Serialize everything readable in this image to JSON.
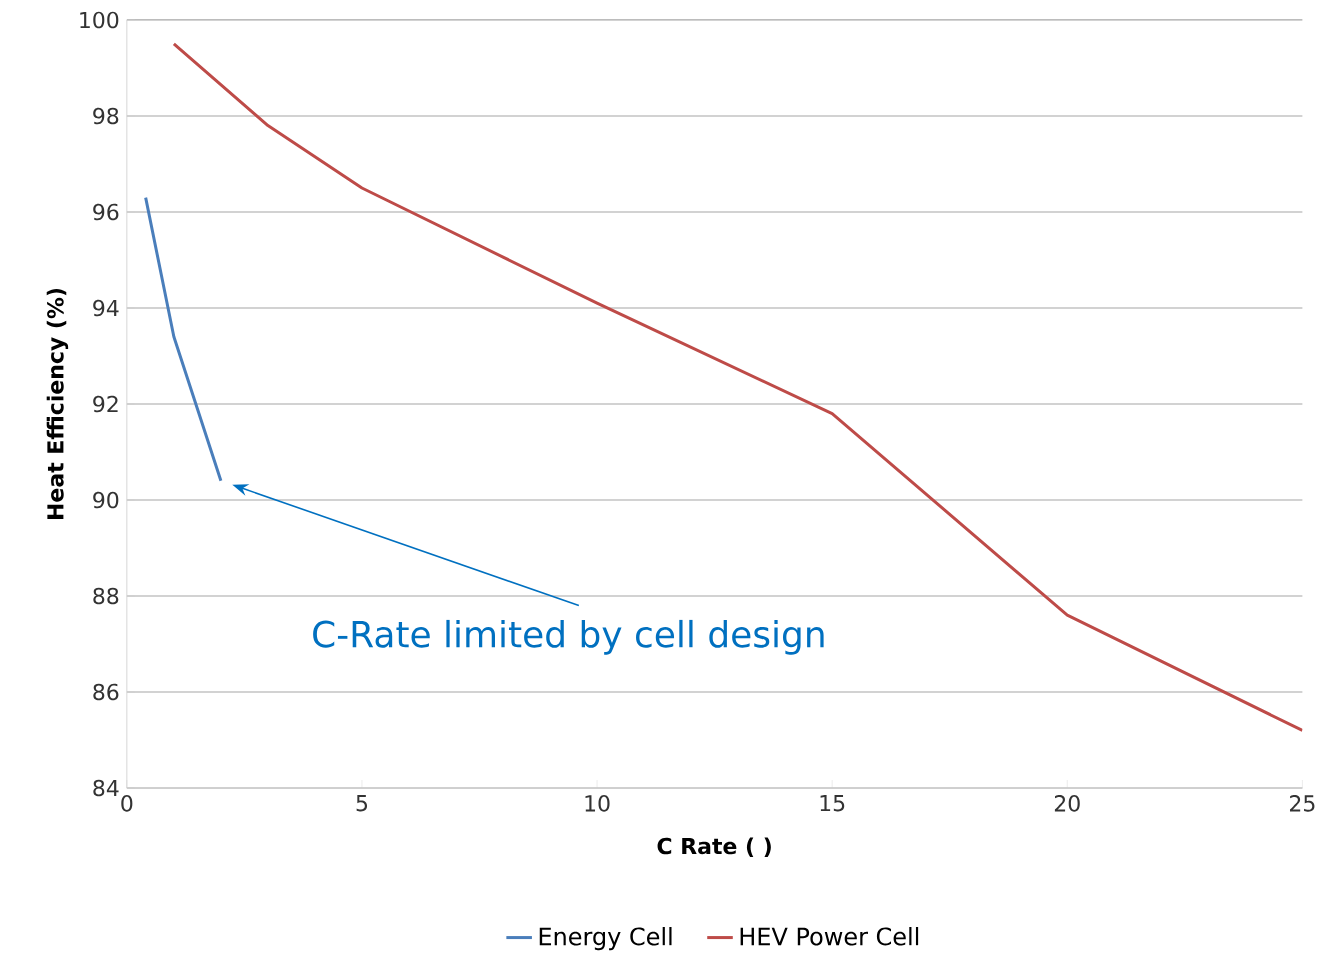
{
  "chart_data": {
    "type": "line",
    "xlabel": "C Rate ( )",
    "ylabel": "Heat Efficiency (%)",
    "series": [
      {
        "name": "Energy Cell",
        "color": "#4a7ebb",
        "x": [
          0.4,
          1,
          2
        ],
        "values": [
          96.3,
          93.4,
          90.4
        ]
      },
      {
        "name": "HEV Power Cell",
        "color": "#be4b48",
        "x": [
          1,
          3,
          5,
          10,
          15,
          20,
          25
        ],
        "values": [
          99.5,
          97.8,
          96.5,
          94.1,
          91.8,
          87.6,
          85.2
        ]
      }
    ],
    "xlim": [
      0,
      25
    ],
    "ylim": [
      84,
      100
    ],
    "xticks": [
      0,
      5,
      10,
      15,
      20,
      25
    ],
    "yticks": [
      84,
      86,
      88,
      90,
      92,
      94,
      96,
      98,
      100
    ],
    "grid": "y",
    "legend": "bottom",
    "marker": "none",
    "line_style": "solid",
    "annotations": [
      "C-Rate limited by cell design"
    ]
  }
}
